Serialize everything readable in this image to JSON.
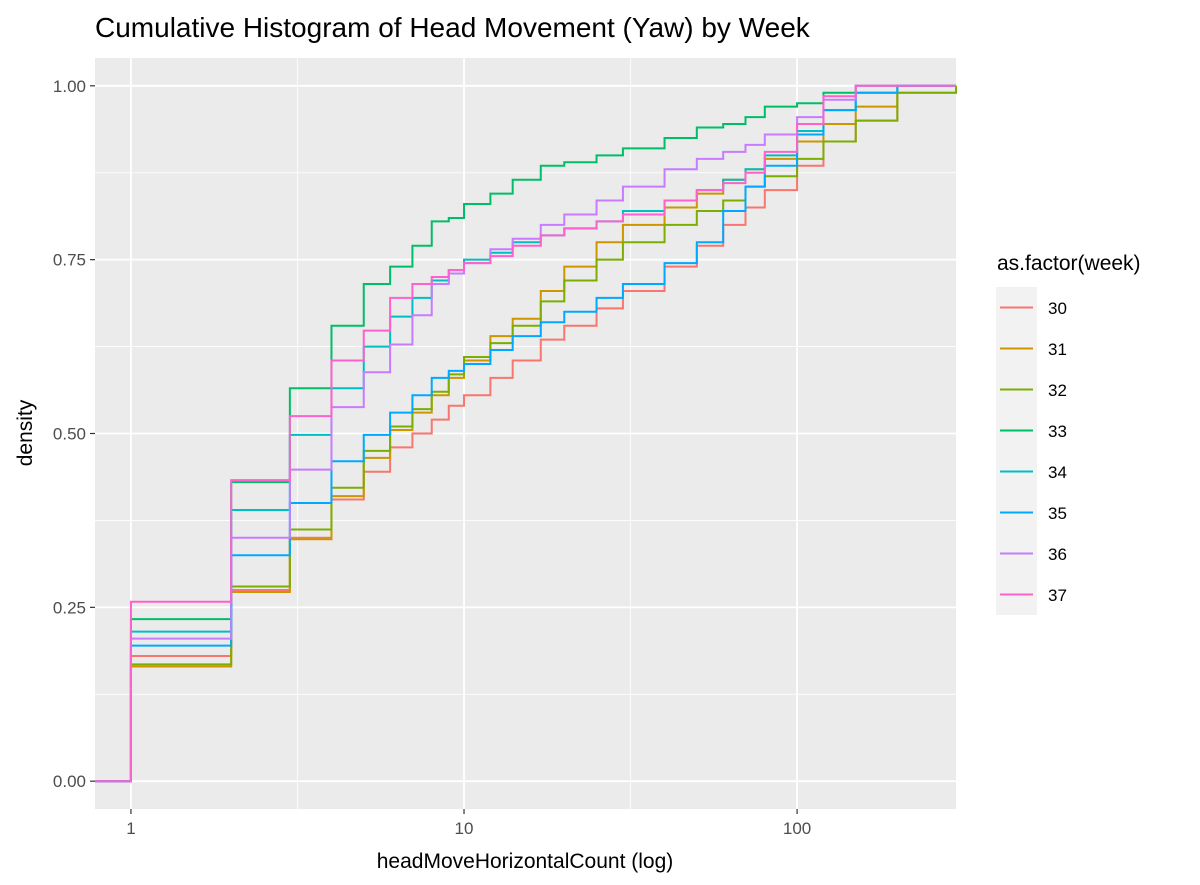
{
  "chart_data": {
    "type": "line",
    "title": "Cumulative Histogram of Head Movement (Yaw) by Week",
    "xlabel": "headMoveHorizontalCount (log)",
    "ylabel": "density",
    "x_scale": "log10",
    "xlim": [
      0.78,
      300
    ],
    "ylim": [
      -0.04,
      1.04
    ],
    "x_ticks": [
      1,
      10,
      100
    ],
    "x_tick_labels": [
      "1",
      "10",
      "100"
    ],
    "y_ticks": [
      0,
      0.25,
      0.5,
      0.75,
      1
    ],
    "y_tick_labels": [
      "0.00",
      "0.25",
      "0.50",
      "0.75",
      "1.00"
    ],
    "grid": true,
    "legend": {
      "title": "as.factor(week)",
      "position": "right"
    },
    "series": [
      {
        "name": "30",
        "color": "#F8766D",
        "x": [
          0.78,
          1,
          2,
          3,
          4,
          5,
          6,
          7,
          8,
          9,
          10,
          12,
          14,
          17,
          20,
          25,
          30,
          40,
          50,
          60,
          70,
          80,
          100,
          120,
          150,
          200,
          300
        ],
        "y": [
          0,
          0.18,
          0.275,
          0.35,
          0.405,
          0.445,
          0.48,
          0.5,
          0.52,
          0.54,
          0.555,
          0.58,
          0.605,
          0.635,
          0.655,
          0.68,
          0.705,
          0.74,
          0.77,
          0.8,
          0.825,
          0.85,
          0.885,
          0.92,
          0.95,
          0.99,
          1
        ]
      },
      {
        "name": "31",
        "color": "#CD9600",
        "x": [
          0.78,
          1,
          2,
          3,
          4,
          5,
          6,
          7,
          8,
          9,
          10,
          12,
          14,
          17,
          20,
          25,
          30,
          40,
          50,
          60,
          70,
          80,
          100,
          120,
          150,
          200,
          300
        ],
        "y": [
          0,
          0.165,
          0.272,
          0.348,
          0.41,
          0.465,
          0.505,
          0.53,
          0.555,
          0.58,
          0.605,
          0.64,
          0.665,
          0.705,
          0.74,
          0.775,
          0.8,
          0.825,
          0.845,
          0.865,
          0.88,
          0.895,
          0.92,
          0.945,
          0.97,
          1,
          1
        ]
      },
      {
        "name": "32",
        "color": "#7CAE00",
        "x": [
          0.78,
          1,
          2,
          3,
          4,
          5,
          6,
          7,
          8,
          9,
          10,
          12,
          14,
          17,
          20,
          25,
          30,
          40,
          50,
          60,
          70,
          80,
          100,
          120,
          150,
          200,
          300
        ],
        "y": [
          0,
          0.168,
          0.28,
          0.362,
          0.422,
          0.475,
          0.51,
          0.535,
          0.56,
          0.585,
          0.61,
          0.63,
          0.655,
          0.69,
          0.72,
          0.75,
          0.775,
          0.8,
          0.82,
          0.835,
          0.855,
          0.87,
          0.895,
          0.92,
          0.95,
          0.99,
          1
        ]
      },
      {
        "name": "33",
        "color": "#00BE67",
        "x": [
          0.78,
          1,
          2,
          3,
          4,
          5,
          6,
          7,
          8,
          9,
          10,
          12,
          14,
          17,
          20,
          25,
          30,
          40,
          50,
          60,
          70,
          80,
          100,
          120,
          150,
          200,
          300
        ],
        "y": [
          0,
          0.233,
          0.43,
          0.565,
          0.655,
          0.715,
          0.74,
          0.77,
          0.805,
          0.81,
          0.83,
          0.845,
          0.865,
          0.885,
          0.89,
          0.9,
          0.91,
          0.925,
          0.94,
          0.945,
          0.955,
          0.97,
          0.975,
          0.99,
          1,
          1,
          1
        ]
      },
      {
        "name": "34",
        "color": "#00BFC4",
        "x": [
          0.78,
          1,
          2,
          3,
          4,
          5,
          6,
          7,
          8,
          9,
          10,
          12,
          14,
          17,
          20,
          25,
          30,
          40,
          50,
          60,
          70,
          80,
          100,
          120,
          150,
          200,
          300
        ],
        "y": [
          0,
          0.215,
          0.39,
          0.498,
          0.565,
          0.625,
          0.668,
          0.695,
          0.72,
          0.735,
          0.75,
          0.76,
          0.775,
          0.785,
          0.795,
          0.805,
          0.82,
          0.835,
          0.85,
          0.865,
          0.88,
          0.9,
          0.935,
          0.965,
          0.99,
          1,
          1
        ]
      },
      {
        "name": "35",
        "color": "#00A9FF",
        "x": [
          0.78,
          1,
          2,
          3,
          4,
          5,
          6,
          7,
          8,
          9,
          10,
          12,
          14,
          17,
          20,
          25,
          30,
          40,
          50,
          60,
          70,
          80,
          100,
          120,
          150,
          200,
          300
        ],
        "y": [
          0,
          0.195,
          0.325,
          0.4,
          0.46,
          0.498,
          0.53,
          0.555,
          0.58,
          0.59,
          0.6,
          0.62,
          0.64,
          0.66,
          0.675,
          0.695,
          0.715,
          0.745,
          0.775,
          0.82,
          0.855,
          0.885,
          0.93,
          0.965,
          0.99,
          1,
          1
        ]
      },
      {
        "name": "36",
        "color": "#C77CFF",
        "x": [
          0.78,
          1,
          2,
          3,
          4,
          5,
          6,
          7,
          8,
          9,
          10,
          12,
          14,
          17,
          20,
          25,
          30,
          40,
          50,
          60,
          70,
          80,
          100,
          120,
          150,
          200,
          300
        ],
        "y": [
          0,
          0.205,
          0.35,
          0.448,
          0.538,
          0.588,
          0.628,
          0.67,
          0.715,
          0.73,
          0.745,
          0.765,
          0.78,
          0.8,
          0.815,
          0.835,
          0.855,
          0.88,
          0.895,
          0.905,
          0.915,
          0.93,
          0.955,
          0.98,
          1,
          1,
          1
        ]
      },
      {
        "name": "37",
        "color": "#FF61CC",
        "x": [
          0.78,
          1,
          2,
          3,
          4,
          5,
          6,
          7,
          8,
          9,
          10,
          12,
          14,
          17,
          20,
          25,
          30,
          40,
          50,
          60,
          70,
          80,
          100,
          120,
          150,
          200,
          300
        ],
        "y": [
          0,
          0.258,
          0.433,
          0.525,
          0.605,
          0.648,
          0.695,
          0.715,
          0.725,
          0.735,
          0.745,
          0.755,
          0.77,
          0.785,
          0.795,
          0.805,
          0.815,
          0.835,
          0.85,
          0.86,
          0.875,
          0.905,
          0.945,
          0.985,
          1,
          1,
          1
        ]
      }
    ]
  }
}
